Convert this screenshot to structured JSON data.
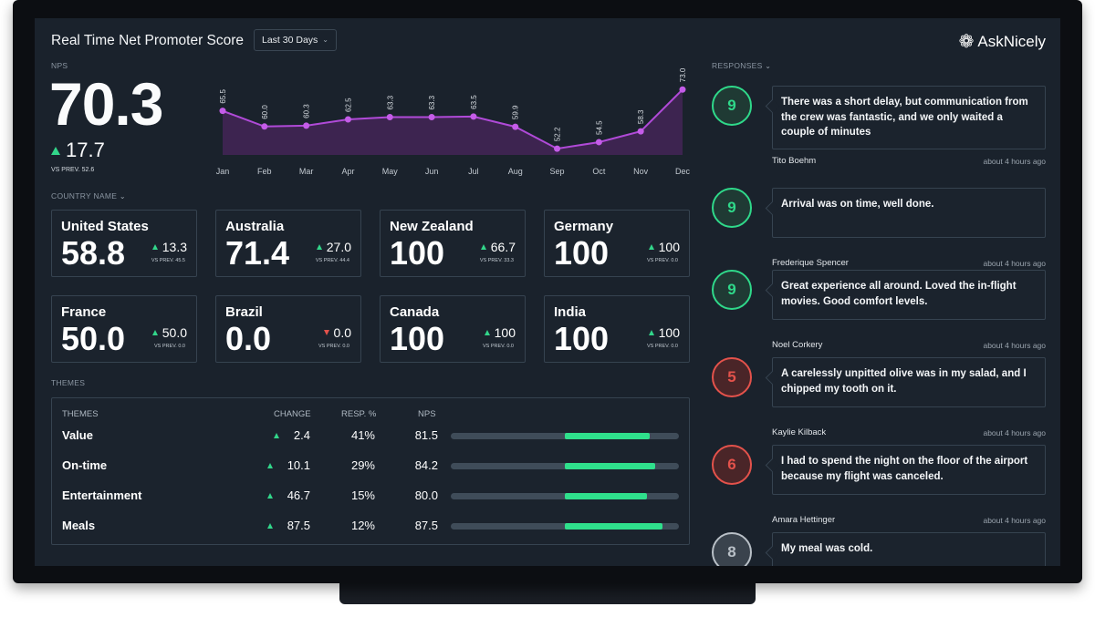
{
  "header": {
    "title": "Real Time Net Promoter Score",
    "range_label": "Last 30 Days",
    "logo_text": "AskNicely",
    "logo_icon": "asterisk-flower-icon"
  },
  "nps": {
    "label": "NPS",
    "value": "70.3",
    "change": "17.7",
    "prev": "VS PREV. 52.6"
  },
  "chart_data": {
    "type": "area",
    "categories": [
      "Jan",
      "Feb",
      "Mar",
      "Apr",
      "May",
      "Jun",
      "Jul",
      "Aug",
      "Sep",
      "Oct",
      "Nov",
      "Dec"
    ],
    "values": [
      65.5,
      60.0,
      60.3,
      62.5,
      63.3,
      63.3,
      63.5,
      59.9,
      52.2,
      54.5,
      58.3,
      73.0
    ],
    "value_labels": [
      "65.5",
      "60.0",
      "60.3",
      "62.5",
      "63.3",
      "63.3",
      "63.5",
      "59.9",
      "52.2",
      "54.5",
      "58.3",
      "73.0"
    ],
    "ylim": [
      50,
      75
    ],
    "grid": false,
    "colors": {
      "line": "#b04ad8",
      "fill": "#3d2450",
      "point": "#c45ce8"
    }
  },
  "country": {
    "label": "COUNTRY NAME",
    "cards": [
      {
        "name": "United States",
        "value": "58.8",
        "change": "13.3",
        "direction": "up",
        "prev": "VS PREV. 45.5"
      },
      {
        "name": "Australia",
        "value": "71.4",
        "change": "27.0",
        "direction": "up",
        "prev": "VS PREV. 44.4"
      },
      {
        "name": "New Zealand",
        "value": "100",
        "change": "66.7",
        "direction": "up",
        "prev": "VS PREV. 33.3"
      },
      {
        "name": "Germany",
        "value": "100",
        "change": "100",
        "direction": "up",
        "prev": "VS PREV. 0.0"
      },
      {
        "name": "France",
        "value": "50.0",
        "change": "50.0",
        "direction": "up",
        "prev": "VS PREV. 0.0"
      },
      {
        "name": "Brazil",
        "value": "0.0",
        "change": "0.0",
        "direction": "down",
        "prev": "VS PREV. 0.0"
      },
      {
        "name": "Canada",
        "value": "100",
        "change": "100",
        "direction": "up",
        "prev": "VS PREV. 0.0"
      },
      {
        "name": "India",
        "value": "100",
        "change": "100",
        "direction": "up",
        "prev": "VS PREV. 0.0"
      }
    ]
  },
  "themes": {
    "label": "THEMES",
    "headers": {
      "name": "THEMES",
      "change": "CHANGE",
      "resp": "RESP. %",
      "nps": "NPS"
    },
    "rows": [
      {
        "name": "Value",
        "change": "2.4",
        "resp": "41%",
        "nps": "81.5",
        "bar_fill": 0.815
      },
      {
        "name": "On-time",
        "change": "10.1",
        "resp": "29%",
        "nps": "84.2",
        "bar_fill": 0.842
      },
      {
        "name": "Entertainment",
        "change": "46.7",
        "resp": "15%",
        "nps": "80.0",
        "bar_fill": 0.8
      },
      {
        "name": "Meals",
        "change": "87.5",
        "resp": "12%",
        "nps": "87.5",
        "bar_fill": 0.875
      }
    ]
  },
  "responses": {
    "label": "RESPONSES",
    "items": [
      {
        "score": "9",
        "text": "There was a short delay, but communication from the crew was fantastic, and we only waited a couple of minutes",
        "name": "Tito Boehm",
        "time": "about 4 hours ago",
        "kind": "promoter"
      },
      {
        "score": "9",
        "text": "Arrival was on time, well done.",
        "name": "Frederique Spencer",
        "time": "about 4 hours ago",
        "kind": "promoter"
      },
      {
        "score": "9",
        "text": "Great experience all around. Loved the in-flight movies. Good comfort levels.",
        "name": "Noel Corkery",
        "time": "about 4 hours ago",
        "kind": "promoter"
      },
      {
        "score": "5",
        "text": "A carelessly unpitted olive was in my salad, and I chipped my tooth on it.",
        "name": "Kaylie Kilback",
        "time": "about 4 hours ago",
        "kind": "detractor"
      },
      {
        "score": "6",
        "text": "I had to spend the night on the floor of the airport because my flight was canceled.",
        "name": "Amara Hettinger",
        "time": "about 4 hours ago",
        "kind": "detractor"
      },
      {
        "score": "8",
        "text": "My meal was cold.",
        "name": "",
        "time": "",
        "kind": "passive"
      }
    ]
  },
  "colors": {
    "promoter": "#2fd98a",
    "promoter_bg": "#1f3a34",
    "detractor": "#e4524b",
    "detractor_bg": "#4a2528",
    "passive": "#b9c0c7",
    "passive_bg": "#3a434d",
    "accent_green": "#32d68a"
  }
}
